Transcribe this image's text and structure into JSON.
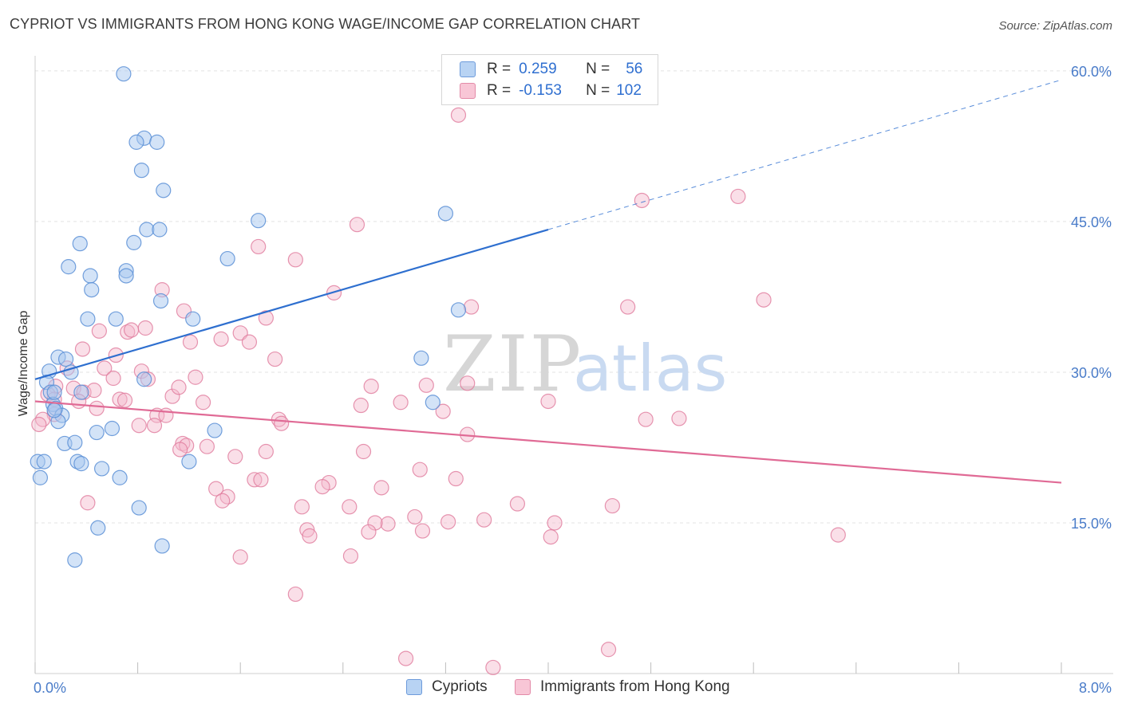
{
  "title": "CYPRIOT VS IMMIGRANTS FROM HONG KONG WAGE/INCOME GAP CORRELATION CHART",
  "source": "Source: ZipAtlas.com",
  "watermark": {
    "zip": "ZIP",
    "atlas": "atlas"
  },
  "legend": {
    "rows": [
      {
        "r_label": "R =",
        "r_value": "0.259",
        "n_label": "N =",
        "n_value": "56"
      },
      {
        "r_label": "R =",
        "r_value": "-0.153",
        "n_label": "N =",
        "n_value": "102"
      }
    ]
  },
  "bottom_legend": {
    "series1": "Cypriots",
    "series2": "Immigrants from Hong Kong"
  },
  "colors": {
    "blue_fill": "#a8c8f0",
    "blue_stroke": "#5b8fd6",
    "blue_line": "#2e6fcf",
    "pink_fill": "#f5b8cc",
    "pink_stroke": "#e07a9c",
    "pink_line": "#e06a95",
    "tick_text": "#4a7cc9",
    "grid": "#e3e3e3"
  },
  "chart_data": {
    "type": "scatter",
    "title": "CYPRIOT VS IMMIGRANTS FROM HONG KONG WAGE/INCOME GAP CORRELATION CHART",
    "ylabel": "Wage/Income Gap",
    "xlabel": "",
    "xlim": [
      0,
      8
    ],
    "ylim": [
      0,
      61.5
    ],
    "x_tick_labels": [
      "0.0%",
      "8.0%"
    ],
    "y_ticks": [
      15,
      30,
      45,
      60
    ],
    "y_tick_labels": [
      "15.0%",
      "30.0%",
      "45.0%",
      "60.0%"
    ],
    "grid": "horizontal dashed",
    "legend_position": "top-center",
    "series": [
      {
        "name": "Cypriots",
        "r": 0.259,
        "n": 56,
        "trend": {
          "x0": 0.0,
          "y0": 29.3,
          "x1": 4.0,
          "y1": 44.2,
          "x_end_dashed": 8.0,
          "y_end_dashed": 59.1
        },
        "points": [
          [
            0.69,
            59.7
          ],
          [
            0.85,
            53.3
          ],
          [
            0.79,
            52.9
          ],
          [
            0.95,
            52.9
          ],
          [
            0.83,
            50.1
          ],
          [
            1.0,
            48.1
          ],
          [
            0.87,
            44.2
          ],
          [
            0.97,
            44.2
          ],
          [
            1.74,
            45.1
          ],
          [
            3.2,
            45.8
          ],
          [
            0.35,
            42.8
          ],
          [
            0.77,
            42.9
          ],
          [
            1.5,
            41.3
          ],
          [
            0.26,
            40.5
          ],
          [
            0.71,
            40.1
          ],
          [
            0.71,
            39.6
          ],
          [
            0.43,
            39.6
          ],
          [
            0.44,
            38.2
          ],
          [
            0.98,
            37.1
          ],
          [
            3.3,
            36.2
          ],
          [
            0.41,
            35.3
          ],
          [
            0.63,
            35.3
          ],
          [
            1.23,
            35.3
          ],
          [
            0.18,
            31.5
          ],
          [
            0.24,
            31.3
          ],
          [
            0.11,
            30.1
          ],
          [
            0.28,
            30.0
          ],
          [
            3.01,
            31.4
          ],
          [
            0.09,
            29.0
          ],
          [
            0.12,
            28.0
          ],
          [
            0.36,
            28.0
          ],
          [
            0.85,
            29.3
          ],
          [
            0.14,
            26.8
          ],
          [
            0.16,
            26.4
          ],
          [
            0.21,
            25.7
          ],
          [
            0.18,
            25.1
          ],
          [
            3.1,
            27.0
          ],
          [
            0.6,
            24.4
          ],
          [
            0.48,
            24.0
          ],
          [
            1.4,
            24.2
          ],
          [
            0.23,
            22.9
          ],
          [
            0.31,
            23.0
          ],
          [
            0.33,
            21.1
          ],
          [
            0.36,
            20.9
          ],
          [
            0.52,
            20.4
          ],
          [
            1.2,
            21.1
          ],
          [
            0.02,
            21.1
          ],
          [
            0.04,
            19.5
          ],
          [
            0.66,
            19.5
          ],
          [
            0.81,
            16.5
          ],
          [
            0.49,
            14.5
          ],
          [
            0.99,
            12.7
          ],
          [
            0.31,
            11.3
          ],
          [
            0.15,
            28.0
          ],
          [
            0.15,
            26.2
          ],
          [
            0.07,
            21.1
          ]
        ]
      },
      {
        "name": "Immigrants from Hong Kong",
        "r": -0.153,
        "n": 102,
        "trend": {
          "x0": 0.0,
          "y0": 27.1,
          "x1": 8.0,
          "y1": 19.0
        },
        "points": [
          [
            3.3,
            55.6
          ],
          [
            5.48,
            47.5
          ],
          [
            4.73,
            47.1
          ],
          [
            2.51,
            44.7
          ],
          [
            1.74,
            42.5
          ],
          [
            2.03,
            41.2
          ],
          [
            0.99,
            38.2
          ],
          [
            2.33,
            37.9
          ],
          [
            5.68,
            37.2
          ],
          [
            4.62,
            36.5
          ],
          [
            3.4,
            36.5
          ],
          [
            1.16,
            36.1
          ],
          [
            1.8,
            35.4
          ],
          [
            0.86,
            34.4
          ],
          [
            0.5,
            34.1
          ],
          [
            0.72,
            34.0
          ],
          [
            0.75,
            34.2
          ],
          [
            1.6,
            33.9
          ],
          [
            1.21,
            33.0
          ],
          [
            1.45,
            33.3
          ],
          [
            1.67,
            33.0
          ],
          [
            0.37,
            32.3
          ],
          [
            0.63,
            31.7
          ],
          [
            1.87,
            31.3
          ],
          [
            0.54,
            30.4
          ],
          [
            0.83,
            30.1
          ],
          [
            0.25,
            30.4
          ],
          [
            0.61,
            29.4
          ],
          [
            1.25,
            29.5
          ],
          [
            0.88,
            29.3
          ],
          [
            3.37,
            28.9
          ],
          [
            2.62,
            28.6
          ],
          [
            3.05,
            28.7
          ],
          [
            0.3,
            28.4
          ],
          [
            0.38,
            28.0
          ],
          [
            0.46,
            28.2
          ],
          [
            0.16,
            28.6
          ],
          [
            0.66,
            27.3
          ],
          [
            0.7,
            27.2
          ],
          [
            0.1,
            27.8
          ],
          [
            1.07,
            27.6
          ],
          [
            1.12,
            28.5
          ],
          [
            0.15,
            27.3
          ],
          [
            0.34,
            27.1
          ],
          [
            1.31,
            27.0
          ],
          [
            2.85,
            27.0
          ],
          [
            2.54,
            26.7
          ],
          [
            0.48,
            26.4
          ],
          [
            3.18,
            26.1
          ],
          [
            4.0,
            27.1
          ],
          [
            0.95,
            25.7
          ],
          [
            1.02,
            25.7
          ],
          [
            1.9,
            25.3
          ],
          [
            1.92,
            24.9
          ],
          [
            4.76,
            25.3
          ],
          [
            5.02,
            25.4
          ],
          [
            0.15,
            25.8
          ],
          [
            0.06,
            25.3
          ],
          [
            0.81,
            24.7
          ],
          [
            0.93,
            24.7
          ],
          [
            3.37,
            23.8
          ],
          [
            1.15,
            22.9
          ],
          [
            1.18,
            22.7
          ],
          [
            1.34,
            22.6
          ],
          [
            1.13,
            22.3
          ],
          [
            2.56,
            22.1
          ],
          [
            1.8,
            22.1
          ],
          [
            1.56,
            21.6
          ],
          [
            3.0,
            20.3
          ],
          [
            1.71,
            19.3
          ],
          [
            2.29,
            19.0
          ],
          [
            1.76,
            19.3
          ],
          [
            3.28,
            19.4
          ],
          [
            2.24,
            18.6
          ],
          [
            1.41,
            18.4
          ],
          [
            2.7,
            18.5
          ],
          [
            1.5,
            17.6
          ],
          [
            1.46,
            17.2
          ],
          [
            0.41,
            17.0
          ],
          [
            3.76,
            16.9
          ],
          [
            4.5,
            16.7
          ],
          [
            2.08,
            16.6
          ],
          [
            2.45,
            16.6
          ],
          [
            2.96,
            15.6
          ],
          [
            3.5,
            15.3
          ],
          [
            3.22,
            15.1
          ],
          [
            2.75,
            14.9
          ],
          [
            2.65,
            15.0
          ],
          [
            4.05,
            15.0
          ],
          [
            2.6,
            14.1
          ],
          [
            2.12,
            14.3
          ],
          [
            2.14,
            13.7
          ],
          [
            3.02,
            14.2
          ],
          [
            4.02,
            13.6
          ],
          [
            6.26,
            13.8
          ],
          [
            1.6,
            11.6
          ],
          [
            2.46,
            11.7
          ],
          [
            2.03,
            7.9
          ],
          [
            4.47,
            2.4
          ],
          [
            2.89,
            1.5
          ],
          [
            3.57,
            0.6
          ],
          [
            0.03,
            24.8
          ]
        ]
      }
    ]
  }
}
